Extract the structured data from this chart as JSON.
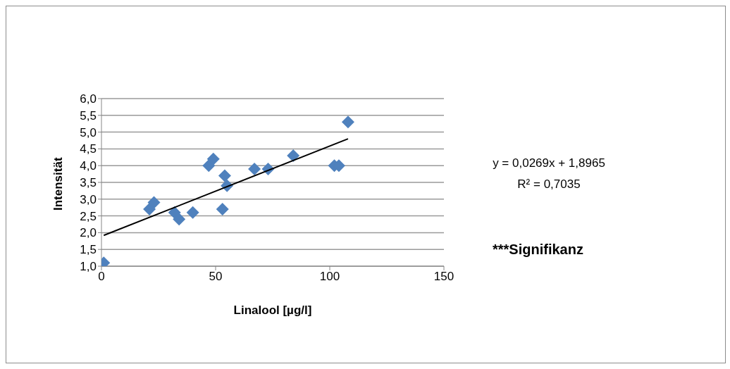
{
  "chart_data": {
    "type": "scatter",
    "xlabel": "Linalool [µg/l]",
    "ylabel": "Intensität",
    "grid": "y",
    "xlim": [
      0,
      150
    ],
    "xticks": [
      0,
      50,
      100,
      150
    ],
    "ylim": [
      1,
      6
    ],
    "yticks": [
      {
        "value": 1,
        "label": "1,0"
      },
      {
        "value": 1.5,
        "label": "1,5"
      },
      {
        "value": 2,
        "label": "2,0"
      },
      {
        "value": 2.5,
        "label": "2,5"
      },
      {
        "value": 3,
        "label": "3,0"
      },
      {
        "value": 3.5,
        "label": "3,5"
      },
      {
        "value": 4,
        "label": "4,0"
      },
      {
        "value": 4.5,
        "label": "4,5"
      },
      {
        "value": 5,
        "label": "5,0"
      },
      {
        "value": 5.5,
        "label": "5,5"
      },
      {
        "value": 6,
        "label": "6,0"
      }
    ],
    "series": [
      {
        "color": "#4f81bd",
        "marker": "diamond",
        "x": [
          1,
          21,
          23,
          32,
          34,
          40,
          47,
          49,
          53,
          54,
          55,
          67,
          73,
          84,
          102,
          104,
          108
        ],
        "values": [
          1.1,
          2.7,
          2.9,
          2.6,
          2.4,
          2.6,
          4.0,
          4.2,
          2.7,
          3.7,
          3.4,
          3.9,
          3.9,
          4.3,
          4.0,
          4.0,
          5.3
        ]
      },
      {
        "type": "line",
        "color": "#000000",
        "marker": "none",
        "line_style": "solid",
        "x": [
          1,
          108
        ],
        "values": [
          1.92,
          4.8
        ]
      }
    ],
    "annotations": [
      "y = 0,0269x + 1,8965",
      "R² = 0,7035",
      "***Signifikanz"
    ]
  }
}
